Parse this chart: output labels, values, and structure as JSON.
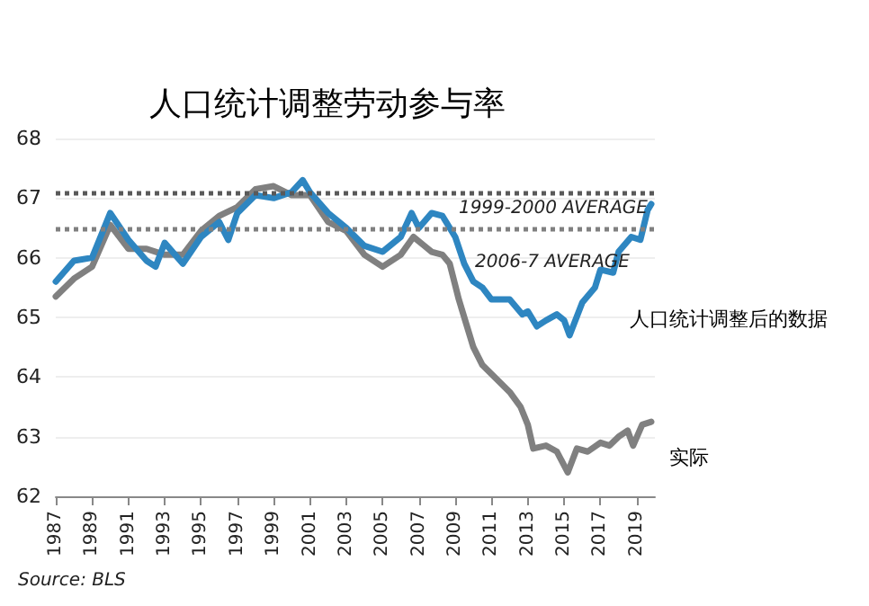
{
  "chart_data": {
    "type": "line",
    "title": "人口统计调整劳动参与率",
    "annotations": [
      "Source: BLS"
    ],
    "xlim": [
      1987,
      2020
    ],
    "xticks": [
      1987,
      1989,
      1991,
      1993,
      1995,
      1997,
      1999,
      2001,
      2003,
      2005,
      2007,
      2009,
      2011,
      2013,
      2015,
      2017,
      2019
    ],
    "ylim": [
      62,
      68
    ],
    "yticks": [
      62,
      63,
      64,
      65,
      66,
      67,
      68
    ],
    "grid": "y",
    "legend": false,
    "marker": "none",
    "line_style": "solid",
    "ref_lines": [
      {
        "axis": "y",
        "value": 67.1,
        "label": "1999-2000 AVERAGE",
        "color": "#595959",
        "line_style": "dotted"
      },
      {
        "axis": "y",
        "value": 66.5,
        "label": "2006-7 AVERAGE",
        "color": "#808080",
        "line_style": "dotted"
      }
    ],
    "series": [
      {
        "name": "实际",
        "color": "#808080",
        "x": [
          1987,
          1988,
          1989,
          1990,
          1991,
          1992,
          1993,
          1994,
          1995,
          1996,
          1997,
          1998,
          1999,
          2000,
          2001,
          2002,
          2003,
          2004,
          2005,
          2006,
          2006.7,
          2007.3,
          2007.7,
          2008.3,
          2008.7,
          2009.2,
          2009.6,
          2010,
          2010.5,
          2011,
          2012,
          2012.6,
          2013,
          2013.3,
          2014,
          2014.6,
          2015.2,
          2015.7,
          2016.3,
          2017,
          2017.5,
          2018,
          2018.5,
          2018.8,
          2019.3,
          2019.8
        ],
        "values": [
          65.35,
          65.65,
          65.85,
          66.55,
          66.15,
          66.15,
          66.05,
          66.05,
          66.45,
          66.7,
          66.85,
          67.15,
          67.2,
          67.05,
          67.05,
          66.6,
          66.45,
          66.05,
          65.85,
          66.05,
          66.35,
          66.2,
          66.1,
          66.05,
          65.9,
          65.3,
          64.9,
          64.5,
          64.2,
          64.05,
          63.75,
          63.5,
          63.2,
          62.8,
          62.85,
          62.75,
          62.4,
          62.8,
          62.75,
          62.9,
          62.85,
          63.0,
          63.1,
          62.85,
          63.2,
          63.25
        ]
      },
      {
        "name": "人口统计调整后的数据",
        "color": "#2e86c1",
        "x": [
          1987,
          1988,
          1989,
          1990,
          1991,
          1992,
          1992.5,
          1993,
          1994,
          1995,
          1996,
          1996.5,
          1997,
          1998,
          1999,
          2000,
          2000.6,
          2001,
          2002,
          2003,
          2004,
          2005,
          2006,
          2006.6,
          2007,
          2007.7,
          2008.3,
          2009,
          2009.5,
          2010,
          2010.5,
          2011,
          2012,
          2012.7,
          2013,
          2013.5,
          2014,
          2014.6,
          2015,
          2015.3,
          2016,
          2016.7,
          2017,
          2017.7,
          2018,
          2018.7,
          2019.2,
          2019.6,
          2019.8
        ],
        "values": [
          65.6,
          65.95,
          66.0,
          66.75,
          66.3,
          65.95,
          65.85,
          66.25,
          65.9,
          66.35,
          66.6,
          66.3,
          66.75,
          67.05,
          67.0,
          67.1,
          67.3,
          67.1,
          66.75,
          66.5,
          66.2,
          66.1,
          66.35,
          66.75,
          66.5,
          66.75,
          66.7,
          66.35,
          65.9,
          65.6,
          65.5,
          65.3,
          65.3,
          65.05,
          65.1,
          64.85,
          64.95,
          65.05,
          64.95,
          64.7,
          65.25,
          65.5,
          65.8,
          65.75,
          66.1,
          66.35,
          66.3,
          66.8,
          66.9
        ]
      }
    ]
  }
}
